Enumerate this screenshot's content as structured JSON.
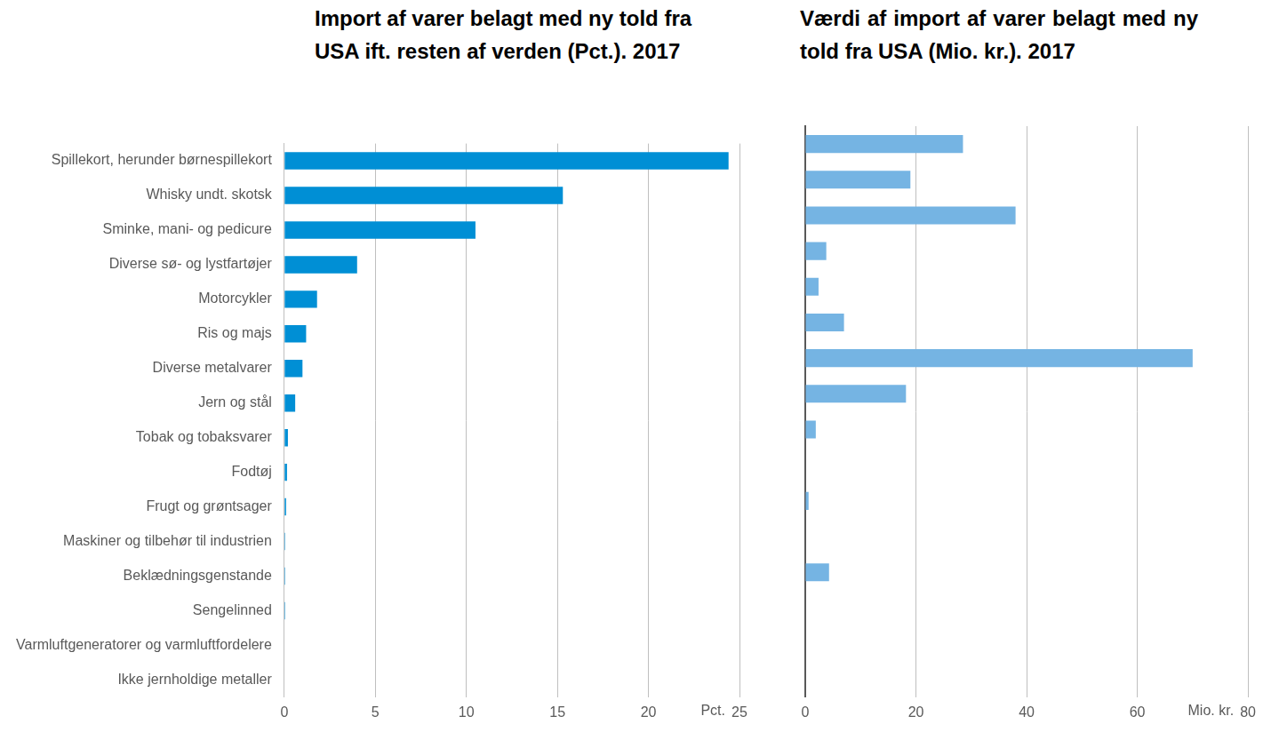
{
  "chart_data": [
    {
      "type": "bar",
      "orientation": "horizontal",
      "title": "Import af varer belagt med ny told fra USA ift. resten af verden (Pct.). 2017",
      "categories": [
        "Spillekort, herunder børnespillekort",
        "Whisky undt. skotsk",
        "Sminke, mani- og pedicure",
        "Diverse sø- og lystfartøjer",
        "Motorcykler",
        "Ris og majs",
        "Diverse metalvarer",
        "Jern og stål",
        "Tobak og tobaksvarer",
        "Fodtøj",
        "Frugt og grøntsager",
        "Maskiner og tilbehør til industrien",
        "Beklædningsgenstande",
        "Sengelinned",
        "Varmluftgeneratorer og varmluftfordelere",
        "Ikke jernholdige metaller"
      ],
      "values": [
        24.4,
        15.3,
        10.5,
        4.0,
        1.8,
        1.2,
        1.0,
        0.6,
        0.2,
        0.15,
        0.1,
        0.05,
        0.05,
        0.05,
        0,
        0
      ],
      "color": "#008fd5",
      "xlim": [
        0,
        25
      ],
      "xticks": [
        0,
        5,
        10,
        15,
        20,
        25
      ],
      "xlabel": "Pct.",
      "grid": true
    },
    {
      "type": "bar",
      "orientation": "horizontal",
      "title": "Værdi af import af varer belagt med ny told fra USA (Mio. kr.). 2017",
      "categories": [
        "Spillekort, herunder børnespillekort",
        "Whisky undt. skotsk",
        "Sminke, mani- og pedicure",
        "Diverse sø- og lystfartøjer",
        "Motorcykler",
        "Ris og majs",
        "Diverse metalvarer",
        "Jern og stål",
        "Tobak og tobaksvarer",
        "Fodtøj",
        "Frugt og grøntsager",
        "Maskiner og tilbehør til industrien",
        "Beklædningsgenstande",
        "Sengelinned",
        "Varmluftgeneratorer og varmluftfordelere",
        "Ikke jernholdige metaller"
      ],
      "values": [
        28.5,
        19,
        38,
        3.8,
        2.4,
        7,
        70,
        18.2,
        1.9,
        0,
        0.6,
        0,
        4.3,
        0,
        0,
        0
      ],
      "color": "#75b4e3",
      "xlim": [
        0,
        80
      ],
      "xticks": [
        0,
        20,
        40,
        60,
        80
      ],
      "xlabel": "Mio. kr.",
      "grid": true,
      "tick_labels": "x"
    }
  ]
}
